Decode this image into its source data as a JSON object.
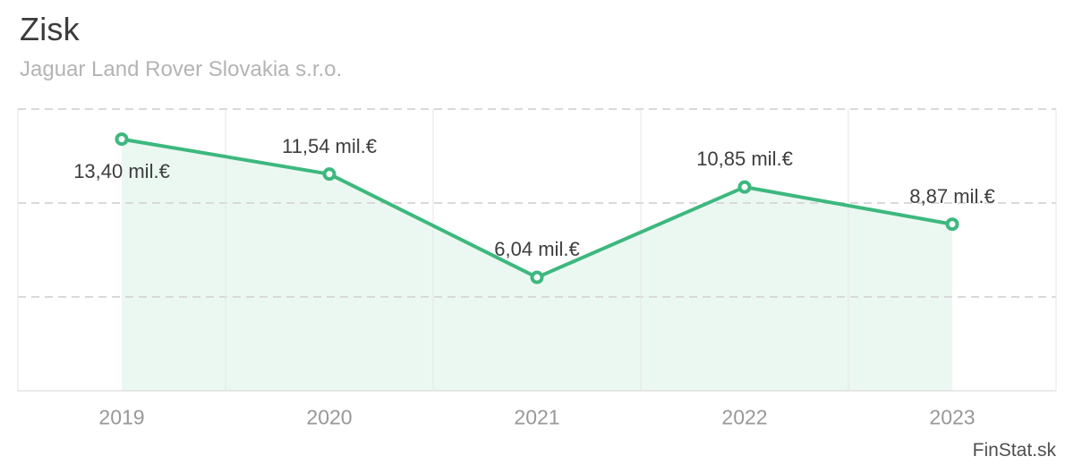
{
  "header": {
    "title": "Zisk",
    "subtitle": "Jaguar Land Rover Slovakia s.r.o."
  },
  "watermark": "FinStat.sk",
  "chart_data": {
    "type": "line",
    "x": [
      "2019",
      "2020",
      "2021",
      "2022",
      "2023"
    ],
    "values": [
      13.4,
      11.54,
      6.04,
      10.85,
      8.87
    ],
    "point_labels": [
      "13,40 mil.€",
      "11,54 mil.€",
      "6,04 mil.€",
      "10,85 mil.€",
      "8,87 mil.€"
    ],
    "label_placement": [
      "below",
      "above",
      "above",
      "above",
      "above"
    ],
    "title": "Zisk",
    "subtitle": "Jaguar Land Rover Slovakia s.r.o.",
    "xlabel": "",
    "ylabel": "",
    "unit": "mil.€",
    "ylim": [
      0,
      15
    ],
    "grid_step": 5,
    "grid": "horizontal dashed gridlines, solid vertical band separators",
    "legend": "none",
    "area_fill_between_first_and_last_point": true,
    "colors": {
      "line": "#3db87e",
      "marker_fill": "#ffffff",
      "area_fill": "rgba(61,184,126,0.10)",
      "grid_dashed": "#d9d9d9",
      "grid_vertical": "#e6e6e6",
      "axis_line": "#d4d4d4",
      "data_label": "#3d3d3d",
      "tick_label": "#989898"
    }
  }
}
